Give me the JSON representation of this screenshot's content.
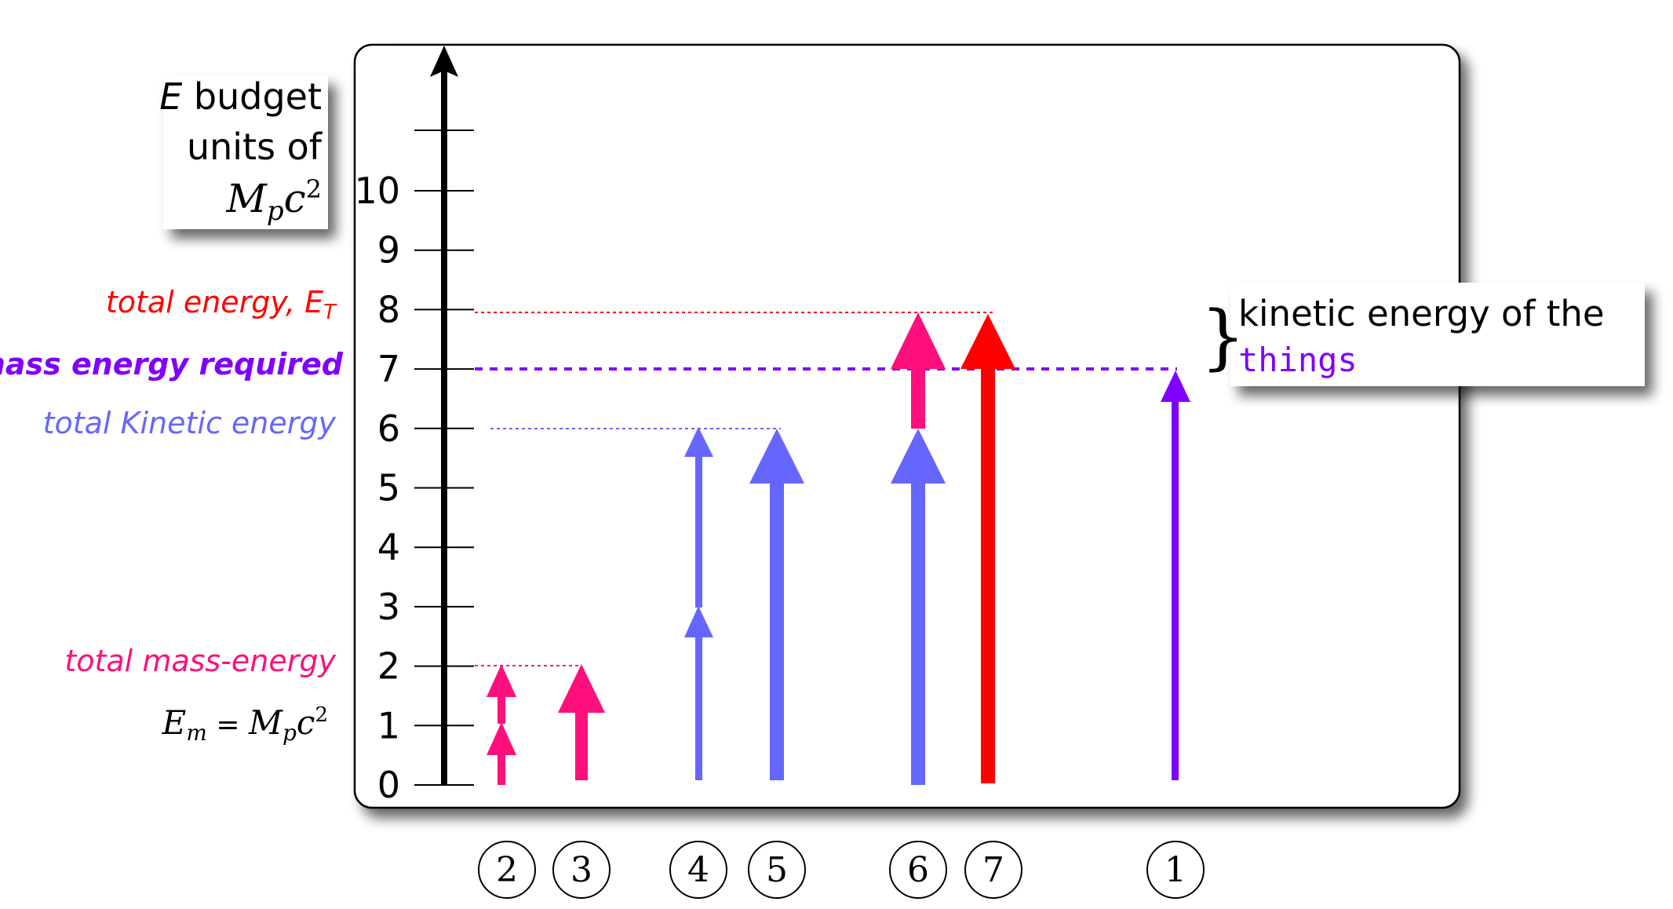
{
  "title_box": {
    "line1_var": "E",
    "line1_rest": " budget",
    "line2": "units of",
    "line3_M": "M",
    "line3_p": "p",
    "line3_c": "c",
    "line3_exp": "2"
  },
  "axis": {
    "ticks": [
      "0",
      "1",
      "2",
      "3",
      "4",
      "5",
      "6",
      "7",
      "8",
      "9",
      "10"
    ]
  },
  "left_labels": {
    "total_energy": "total energy, E",
    "total_energy_sub": "T",
    "mass_energy_required": "mass energy required",
    "total_kinetic": "total Kinetic energy",
    "total_mass_energy": "total mass-energy",
    "em_E": "E",
    "em_sub": "m",
    "em_eq": " = ",
    "em_M": "M",
    "em_p": "p",
    "em_c": "c",
    "em_exp": "2"
  },
  "ke_box": {
    "line1": "kinetic energy of the",
    "line2": "things"
  },
  "brace": "}",
  "circles": [
    "2",
    "3",
    "4",
    "5",
    "6",
    "7",
    "1"
  ],
  "colors": {
    "red": "#ff0000",
    "magenta": "#ff0f7b",
    "blue": "#6666ff",
    "purple": "#8000ff",
    "black": "#000000"
  }
}
